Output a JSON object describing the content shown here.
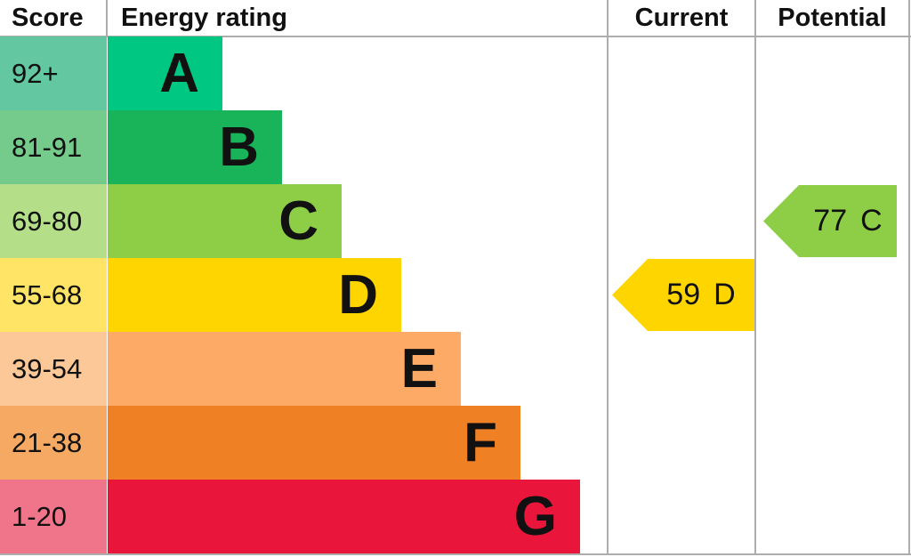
{
  "header": {
    "score": "Score",
    "energy_rating": "Energy rating",
    "current": "Current",
    "potential": "Potential"
  },
  "bands": [
    {
      "letter": "A",
      "range": "92+",
      "bar_color": "#00c781",
      "score_bg": "#63c7a2"
    },
    {
      "letter": "B",
      "range": "81-91",
      "bar_color": "#19b459",
      "score_bg": "#75cb8b"
    },
    {
      "letter": "C",
      "range": "69-80",
      "bar_color": "#8dce46",
      "score_bg": "#b4de88"
    },
    {
      "letter": "D",
      "range": "55-68",
      "bar_color": "#ffd500",
      "score_bg": "#ffe466"
    },
    {
      "letter": "E",
      "range": "39-54",
      "bar_color": "#fcaa65",
      "score_bg": "#fcc897"
    },
    {
      "letter": "F",
      "range": "21-38",
      "bar_color": "#ef8023",
      "score_bg": "#f5a963"
    },
    {
      "letter": "G",
      "range": "1-20",
      "bar_color": "#e9153b",
      "score_bg": "#f0758a"
    }
  ],
  "current": {
    "score": "59",
    "band": "D",
    "color": "#ffd500"
  },
  "potential": {
    "score": "77",
    "band": "C",
    "color": "#8dce46"
  },
  "grid_color": "#adadad",
  "chart_data": {
    "type": "bar",
    "title": "Energy rating",
    "orientation": "horizontal",
    "categories": [
      "A",
      "B",
      "C",
      "D",
      "E",
      "F",
      "G"
    ],
    "score_ranges": [
      "92+",
      "81-91",
      "69-80",
      "55-68",
      "39-54",
      "21-38",
      "1-20"
    ],
    "band_colors": [
      "#00c781",
      "#19b459",
      "#8dce46",
      "#ffd500",
      "#fcaa65",
      "#ef8023",
      "#e9153b"
    ],
    "columns": [
      "Score",
      "Energy rating",
      "Current",
      "Potential"
    ],
    "markers": [
      {
        "name": "Current",
        "value": 59,
        "band": "D",
        "color": "#ffd500"
      },
      {
        "name": "Potential",
        "value": 77,
        "band": "C",
        "color": "#8dce46"
      }
    ]
  }
}
